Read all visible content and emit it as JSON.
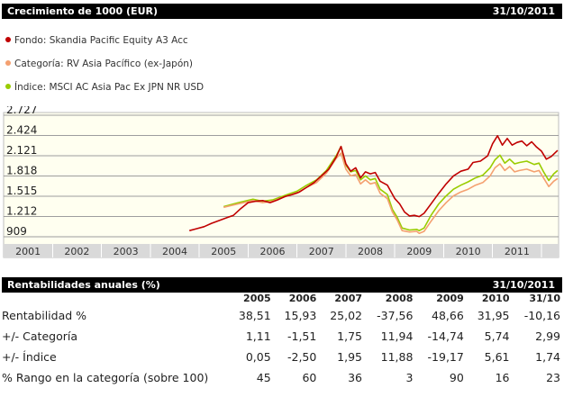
{
  "header": {
    "title": "Crecimiento de 1000 (EUR)",
    "date": "31/10/2011"
  },
  "legend": [
    {
      "label": "Fondo: Skandia Pacific Equity A3 Acc",
      "color": "#c00000"
    },
    {
      "label": "Categoría: RV Asia Pacífico (ex-Japón)",
      "color": "#f4a070"
    },
    {
      "label": "Índice: MSCI AC Asia Pac Ex JPN NR USD",
      "color": "#99cc00"
    }
  ],
  "chart_data": {
    "type": "line",
    "yticks": [
      "2.727",
      "2.424",
      "2.121",
      "1.818",
      "1.515",
      "1.212",
      "909"
    ],
    "ylim": [
      909,
      2727
    ],
    "xticks": [
      "2001",
      "2002",
      "2003",
      "2004",
      "2005",
      "2006",
      "2007",
      "2008",
      "2009",
      "2010",
      "2011"
    ],
    "xlim": [
      2000.5,
      2011.85
    ],
    "background": "#fffff0",
    "series": [
      {
        "name": "Fondo",
        "color": "#c00000",
        "points": [
          [
            2004.3,
            1000
          ],
          [
            2004.45,
            1030
          ],
          [
            2004.6,
            1060
          ],
          [
            2004.75,
            1110
          ],
          [
            2004.9,
            1150
          ],
          [
            2005.05,
            1190
          ],
          [
            2005.2,
            1230
          ],
          [
            2005.35,
            1330
          ],
          [
            2005.5,
            1420
          ],
          [
            2005.65,
            1440
          ],
          [
            2005.8,
            1450
          ],
          [
            2005.95,
            1420
          ],
          [
            2006.1,
            1460
          ],
          [
            2006.25,
            1510
          ],
          [
            2006.4,
            1540
          ],
          [
            2006.55,
            1580
          ],
          [
            2006.7,
            1650
          ],
          [
            2006.85,
            1720
          ],
          [
            2007.0,
            1820
          ],
          [
            2007.15,
            1920
          ],
          [
            2007.3,
            2100
          ],
          [
            2007.4,
            2260
          ],
          [
            2007.5,
            2000
          ],
          [
            2007.6,
            1890
          ],
          [
            2007.7,
            1940
          ],
          [
            2007.8,
            1790
          ],
          [
            2007.9,
            1880
          ],
          [
            2008.0,
            1850
          ],
          [
            2008.1,
            1870
          ],
          [
            2008.2,
            1740
          ],
          [
            2008.35,
            1680
          ],
          [
            2008.5,
            1480
          ],
          [
            2008.6,
            1400
          ],
          [
            2008.7,
            1280
          ],
          [
            2008.8,
            1220
          ],
          [
            2008.9,
            1230
          ],
          [
            2009.0,
            1210
          ],
          [
            2009.1,
            1260
          ],
          [
            2009.25,
            1410
          ],
          [
            2009.4,
            1560
          ],
          [
            2009.55,
            1700
          ],
          [
            2009.7,
            1820
          ],
          [
            2009.85,
            1890
          ],
          [
            2010.0,
            1920
          ],
          [
            2010.1,
            2020
          ],
          [
            2010.25,
            2040
          ],
          [
            2010.4,
            2120
          ],
          [
            2010.5,
            2300
          ],
          [
            2010.6,
            2420
          ],
          [
            2010.7,
            2280
          ],
          [
            2010.8,
            2380
          ],
          [
            2010.9,
            2280
          ],
          [
            2011.0,
            2320
          ],
          [
            2011.1,
            2340
          ],
          [
            2011.2,
            2270
          ],
          [
            2011.3,
            2330
          ],
          [
            2011.4,
            2250
          ],
          [
            2011.5,
            2190
          ],
          [
            2011.6,
            2070
          ],
          [
            2011.7,
            2110
          ],
          [
            2011.83,
            2200
          ]
        ]
      },
      {
        "name": "Categoría",
        "color": "#f4a070",
        "points": [
          [
            2005.0,
            1350
          ],
          [
            2005.3,
            1400
          ],
          [
            2005.6,
            1450
          ],
          [
            2005.8,
            1420
          ],
          [
            2006.0,
            1440
          ],
          [
            2006.3,
            1520
          ],
          [
            2006.5,
            1560
          ],
          [
            2006.7,
            1650
          ],
          [
            2006.9,
            1720
          ],
          [
            2007.1,
            1860
          ],
          [
            2007.3,
            2080
          ],
          [
            2007.4,
            2160
          ],
          [
            2007.5,
            1920
          ],
          [
            2007.6,
            1820
          ],
          [
            2007.7,
            1840
          ],
          [
            2007.8,
            1700
          ],
          [
            2007.9,
            1760
          ],
          [
            2008.0,
            1700
          ],
          [
            2008.1,
            1720
          ],
          [
            2008.2,
            1560
          ],
          [
            2008.35,
            1480
          ],
          [
            2008.45,
            1280
          ],
          [
            2008.55,
            1160
          ],
          [
            2008.65,
            1000
          ],
          [
            2008.8,
            980
          ],
          [
            2008.95,
            990
          ],
          [
            2009.0,
            960
          ],
          [
            2009.1,
            990
          ],
          [
            2009.25,
            1150
          ],
          [
            2009.4,
            1300
          ],
          [
            2009.55,
            1420
          ],
          [
            2009.7,
            1520
          ],
          [
            2009.85,
            1580
          ],
          [
            2010.0,
            1620
          ],
          [
            2010.15,
            1680
          ],
          [
            2010.3,
            1720
          ],
          [
            2010.45,
            1820
          ],
          [
            2010.55,
            1940
          ],
          [
            2010.65,
            2000
          ],
          [
            2010.75,
            1900
          ],
          [
            2010.85,
            1960
          ],
          [
            2010.95,
            1880
          ],
          [
            2011.05,
            1900
          ],
          [
            2011.2,
            1920
          ],
          [
            2011.35,
            1880
          ],
          [
            2011.45,
            1900
          ],
          [
            2011.55,
            1780
          ],
          [
            2011.65,
            1660
          ],
          [
            2011.75,
            1740
          ],
          [
            2011.83,
            1780
          ]
        ]
      },
      {
        "name": "Índice",
        "color": "#99cc00",
        "points": [
          [
            2005.0,
            1360
          ],
          [
            2005.3,
            1420
          ],
          [
            2005.6,
            1470
          ],
          [
            2005.8,
            1440
          ],
          [
            2006.0,
            1460
          ],
          [
            2006.3,
            1540
          ],
          [
            2006.5,
            1590
          ],
          [
            2006.7,
            1680
          ],
          [
            2006.9,
            1760
          ],
          [
            2007.1,
            1900
          ],
          [
            2007.3,
            2120
          ],
          [
            2007.4,
            2260
          ],
          [
            2007.5,
            1980
          ],
          [
            2007.6,
            1880
          ],
          [
            2007.7,
            1900
          ],
          [
            2007.8,
            1760
          ],
          [
            2007.9,
            1820
          ],
          [
            2008.0,
            1760
          ],
          [
            2008.1,
            1780
          ],
          [
            2008.2,
            1620
          ],
          [
            2008.35,
            1540
          ],
          [
            2008.45,
            1320
          ],
          [
            2008.55,
            1200
          ],
          [
            2008.65,
            1040
          ],
          [
            2008.8,
            1010
          ],
          [
            2008.95,
            1020
          ],
          [
            2009.0,
            1000
          ],
          [
            2009.1,
            1040
          ],
          [
            2009.25,
            1240
          ],
          [
            2009.4,
            1400
          ],
          [
            2009.55,
            1520
          ],
          [
            2009.7,
            1620
          ],
          [
            2009.85,
            1680
          ],
          [
            2010.0,
            1730
          ],
          [
            2010.15,
            1790
          ],
          [
            2010.3,
            1830
          ],
          [
            2010.45,
            1940
          ],
          [
            2010.55,
            2060
          ],
          [
            2010.65,
            2130
          ],
          [
            2010.75,
            2010
          ],
          [
            2010.85,
            2070
          ],
          [
            2010.95,
            2000
          ],
          [
            2011.05,
            2020
          ],
          [
            2011.2,
            2040
          ],
          [
            2011.35,
            1990
          ],
          [
            2011.45,
            2010
          ],
          [
            2011.55,
            1870
          ],
          [
            2011.65,
            1750
          ],
          [
            2011.75,
            1850
          ],
          [
            2011.83,
            1900
          ]
        ]
      }
    ]
  },
  "returns": {
    "title": "Rentabilidades anuales (%)",
    "date": "31/10/2011",
    "columns": [
      "2005",
      "2006",
      "2007",
      "2008",
      "2009",
      "2010",
      "31/10"
    ],
    "rows": [
      {
        "label": "Rentabilidad %",
        "values": [
          "38,51",
          "15,93",
          "25,02",
          "-37,56",
          "48,66",
          "31,95",
          "-10,16"
        ]
      },
      {
        "label": "+/-  Categoría",
        "values": [
          "1,11",
          "-1,51",
          "1,75",
          "11,94",
          "-14,74",
          "5,74",
          "2,99"
        ]
      },
      {
        "label": "+/-  Índice",
        "values": [
          "0,05",
          "-2,50",
          "1,95",
          "11,88",
          "-19,17",
          "5,61",
          "1,74"
        ]
      },
      {
        "label": "% Rango en la categoría (sobre 100)",
        "values": [
          "45",
          "60",
          "36",
          "3",
          "90",
          "16",
          "23"
        ]
      }
    ]
  }
}
